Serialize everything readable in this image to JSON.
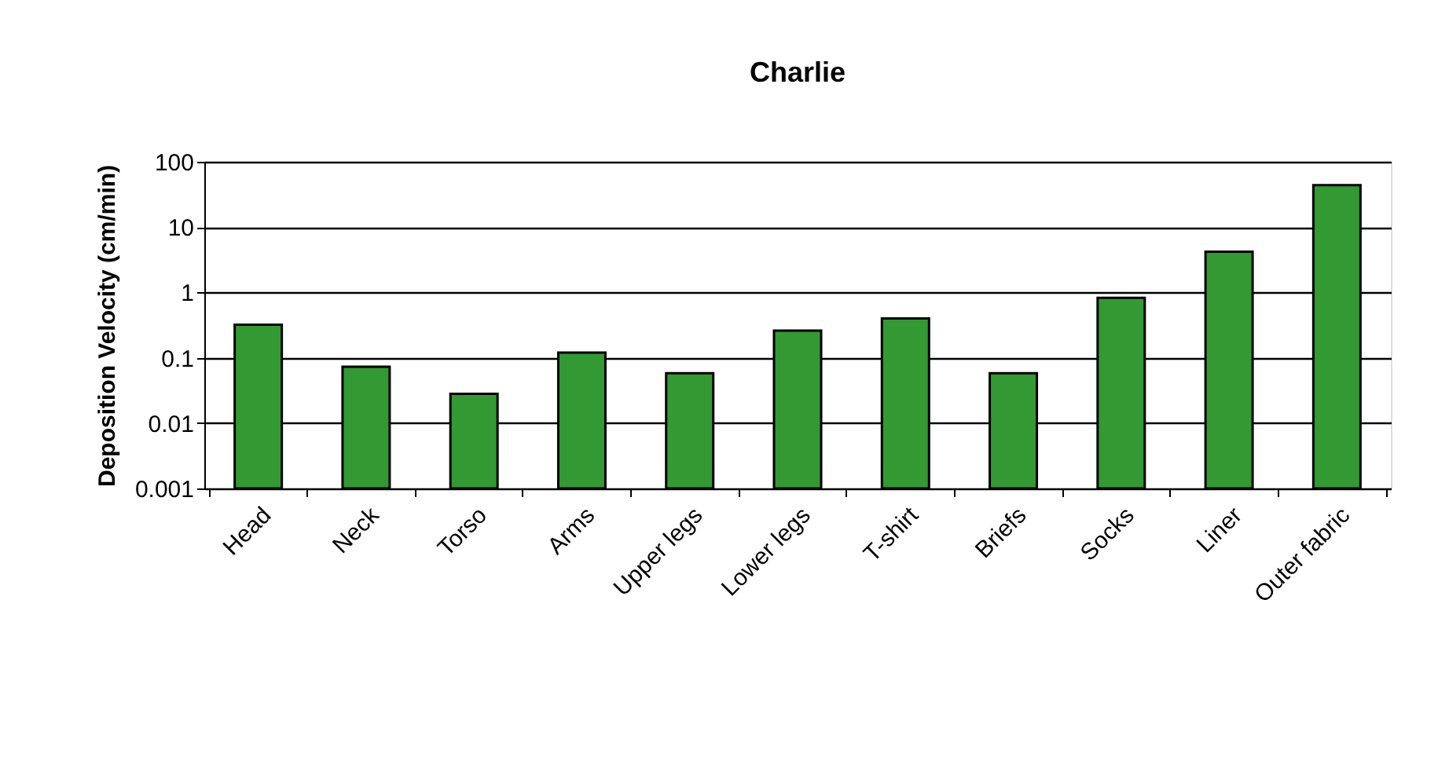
{
  "chart_data": {
    "type": "bar",
    "title": "Charlie",
    "ylabel": "Deposition Velocity (cm/min)",
    "categories": [
      "Head",
      "Neck",
      "Torso",
      "Arms",
      "Upper legs",
      "Lower legs",
      "T-shirt",
      "Briefs",
      "Socks",
      "Liner",
      "Outer fabric"
    ],
    "values": [
      0.32,
      0.073,
      0.028,
      0.12,
      0.058,
      0.26,
      0.4,
      0.058,
      0.83,
      4.2,
      44
    ],
    "color": "#339933",
    "log": true,
    "ylim": [
      0.001,
      100
    ],
    "yticks": [
      0.001,
      0.01,
      0.1,
      1,
      10,
      100
    ],
    "grid": "y"
  }
}
